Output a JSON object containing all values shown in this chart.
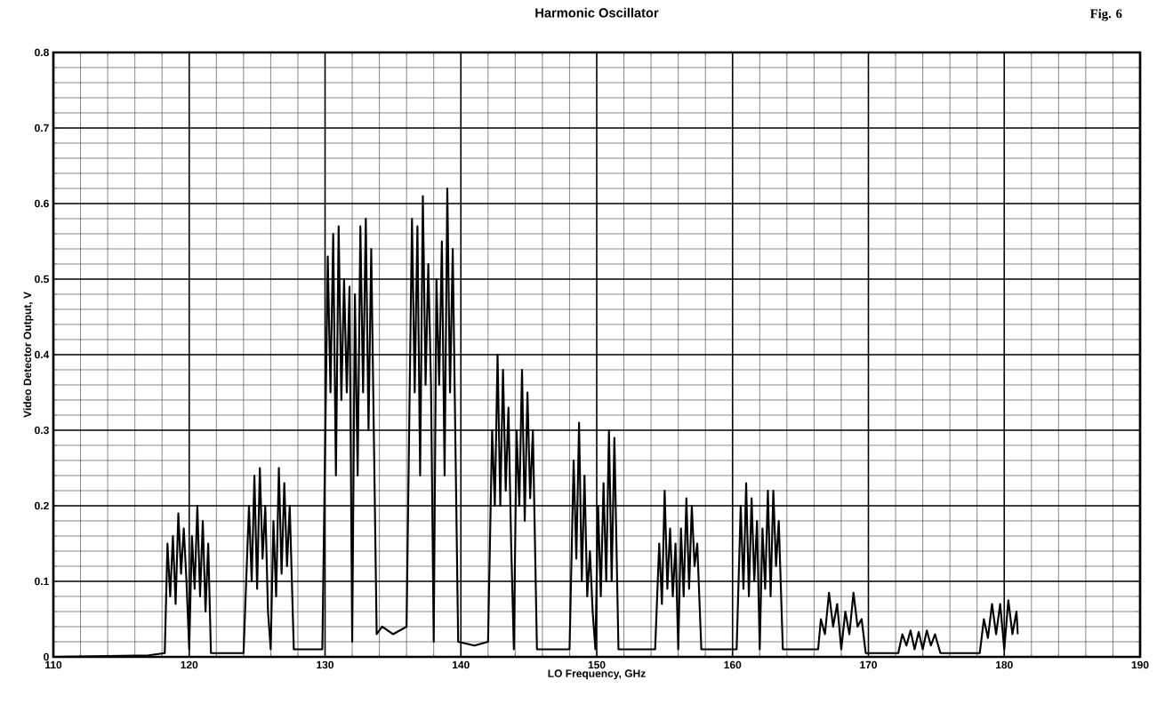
{
  "chart_data": {
    "type": "line",
    "title": "Harmonic Oscillator",
    "xlabel": "LO Frequency, GHz",
    "ylabel": "Video Detector Output, V",
    "annotations": [
      "Fig. 6"
    ],
    "color": "#000000",
    "grid": true,
    "xlim": [
      110,
      190
    ],
    "ylim": [
      0,
      0.8
    ],
    "xticks": [
      110,
      120,
      130,
      140,
      150,
      160,
      170,
      180,
      190
    ],
    "yticks": [
      0,
      0.1,
      0.2,
      0.3,
      0.4,
      0.5,
      0.6,
      0.7,
      0.8
    ],
    "x": [
      110,
      117,
      118.2,
      118.4,
      118.6,
      118.8,
      119.0,
      119.2,
      119.4,
      119.6,
      119.8,
      120.0,
      120.2,
      120.4,
      120.6,
      120.8,
      121.0,
      121.2,
      121.4,
      121.6,
      124.0,
      124.4,
      124.6,
      124.8,
      125.0,
      125.2,
      125.4,
      125.6,
      125.8,
      126.0,
      126.2,
      126.4,
      126.6,
      126.8,
      127.0,
      127.2,
      127.4,
      127.7,
      129.8,
      130.2,
      130.4,
      130.6,
      130.8,
      131.0,
      131.2,
      131.4,
      131.6,
      131.8,
      132.0,
      132.2,
      132.4,
      132.6,
      132.8,
      133.0,
      133.2,
      133.4,
      133.8,
      134.2,
      135.0,
      136.0,
      136.4,
      136.6,
      136.8,
      137.0,
      137.2,
      137.4,
      137.6,
      137.8,
      138.0,
      138.2,
      138.4,
      138.6,
      138.8,
      139.0,
      139.2,
      139.4,
      139.8,
      141.0,
      142.0,
      142.3,
      142.5,
      142.7,
      142.9,
      143.1,
      143.3,
      143.5,
      143.7,
      143.9,
      144.1,
      144.3,
      144.5,
      144.7,
      144.9,
      145.1,
      145.3,
      145.6,
      148.0,
      148.3,
      148.5,
      148.7,
      148.9,
      149.1,
      149.3,
      149.5,
      149.7,
      149.9,
      150.1,
      150.3,
      150.5,
      150.7,
      150.9,
      151.1,
      151.3,
      151.6,
      154.3,
      154.6,
      154.8,
      155.0,
      155.2,
      155.4,
      155.6,
      155.8,
      156.0,
      156.2,
      156.4,
      156.6,
      156.8,
      157.0,
      157.2,
      157.4,
      157.7,
      160.3,
      160.6,
      160.8,
      161.0,
      161.2,
      161.4,
      161.6,
      161.8,
      162.0,
      162.2,
      162.4,
      162.6,
      162.8,
      163.0,
      163.2,
      163.4,
      163.7,
      166.3,
      166.5,
      166.8,
      167.1,
      167.4,
      167.7,
      168.0,
      168.3,
      168.6,
      168.9,
      169.2,
      169.5,
      169.8,
      172.2,
      172.5,
      172.8,
      173.1,
      173.4,
      173.7,
      174.0,
      174.3,
      174.6,
      174.9,
      175.3,
      178.2,
      178.5,
      178.8,
      179.1,
      179.4,
      179.7,
      180.0,
      180.3,
      180.6,
      180.9,
      181.0
    ],
    "values": [
      0,
      0.002,
      0.005,
      0.15,
      0.08,
      0.16,
      0.07,
      0.19,
      0.11,
      0.17,
      0.1,
      0.01,
      0.16,
      0.09,
      0.2,
      0.08,
      0.18,
      0.06,
      0.15,
      0.005,
      0.005,
      0.2,
      0.1,
      0.24,
      0.09,
      0.25,
      0.13,
      0.2,
      0.06,
      0.01,
      0.18,
      0.08,
      0.25,
      0.11,
      0.23,
      0.12,
      0.2,
      0.01,
      0.01,
      0.53,
      0.35,
      0.56,
      0.24,
      0.57,
      0.34,
      0.5,
      0.35,
      0.49,
      0.02,
      0.48,
      0.24,
      0.57,
      0.35,
      0.58,
      0.3,
      0.54,
      0.03,
      0.04,
      0.03,
      0.04,
      0.58,
      0.35,
      0.57,
      0.24,
      0.61,
      0.36,
      0.52,
      0.36,
      0.02,
      0.5,
      0.36,
      0.55,
      0.24,
      0.62,
      0.35,
      0.54,
      0.02,
      0.015,
      0.02,
      0.3,
      0.2,
      0.4,
      0.2,
      0.38,
      0.22,
      0.33,
      0.15,
      0.01,
      0.3,
      0.2,
      0.38,
      0.18,
      0.35,
      0.21,
      0.3,
      0.01,
      0.01,
      0.26,
      0.13,
      0.31,
      0.1,
      0.24,
      0.08,
      0.14,
      0.06,
      0.01,
      0.2,
      0.08,
      0.23,
      0.1,
      0.3,
      0.1,
      0.29,
      0.01,
      0.01,
      0.15,
      0.07,
      0.22,
      0.09,
      0.17,
      0.08,
      0.15,
      0.01,
      0.17,
      0.08,
      0.21,
      0.09,
      0.2,
      0.12,
      0.15,
      0.01,
      0.01,
      0.2,
      0.09,
      0.23,
      0.08,
      0.21,
      0.1,
      0.18,
      0.01,
      0.17,
      0.09,
      0.22,
      0.08,
      0.22,
      0.12,
      0.18,
      0.01,
      0.01,
      0.05,
      0.03,
      0.085,
      0.04,
      0.07,
      0.01,
      0.06,
      0.03,
      0.085,
      0.04,
      0.05,
      0.005,
      0.005,
      0.03,
      0.015,
      0.035,
      0.01,
      0.033,
      0.01,
      0.035,
      0.015,
      0.03,
      0.005,
      0.005,
      0.05,
      0.025,
      0.07,
      0.03,
      0.07,
      0.01,
      0.075,
      0.03,
      0.06,
      0.03
    ]
  }
}
